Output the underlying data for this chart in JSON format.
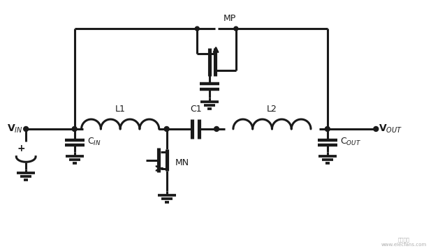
{
  "bg_color": "#ffffff",
  "line_color": "#1a1a1a",
  "lw": 2.2,
  "fig_w": 6.4,
  "fig_h": 3.6,
  "labels": {
    "VIN": "V$_{IN}$",
    "VOUT": "V$_{OUT}$",
    "L1": "L1",
    "L2": "L2",
    "C1": "C1",
    "CIN": "C$_{IN}$",
    "COUT": "C$_{OUT}$",
    "MP": "MP",
    "MN": "MN"
  }
}
